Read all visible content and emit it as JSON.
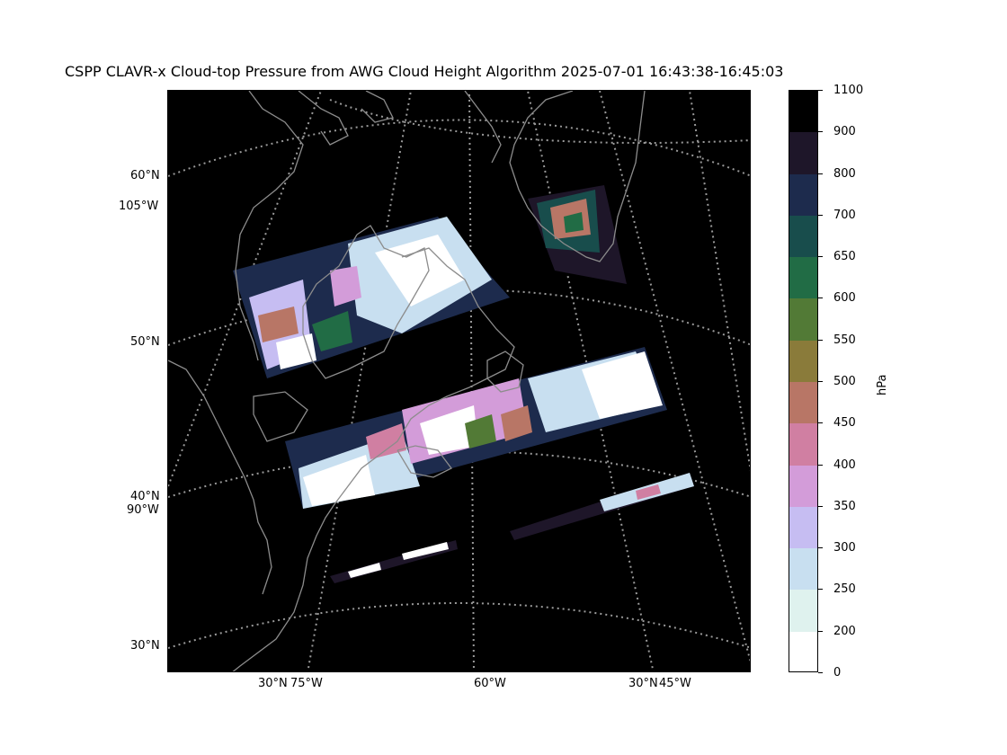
{
  "title": "CSPP CLAVR-x Cloud-top Pressure from AWG Cloud Height Algorithm 2025-07-01 16:43:38-16:45:03",
  "map": {
    "background": "#000000",
    "coastline_color": "#8c8c8c",
    "gridline_color": "#9a9a9a",
    "left_labels": [
      {
        "id": "lat-60",
        "text": "60°N"
      },
      {
        "id": "lon-105",
        "text": "105°W"
      },
      {
        "id": "lat-50",
        "text": "50°N"
      },
      {
        "id": "lat-40",
        "text": "40°N"
      },
      {
        "id": "lon-90",
        "text": "90°W"
      },
      {
        "id": "lat-30",
        "text": "30°N"
      }
    ],
    "bottom_labels": [
      {
        "id": "lat-30-left",
        "text": "30°N"
      },
      {
        "id": "lon-75",
        "text": "75°W"
      },
      {
        "id": "lon-60",
        "text": "60°W"
      },
      {
        "id": "lat-30-right",
        "text": "30°N"
      },
      {
        "id": "lon-45",
        "text": "45°W"
      }
    ]
  },
  "colorbar": {
    "label": "hPa",
    "ticks": [
      "1100",
      "900",
      "800",
      "700",
      "650",
      "600",
      "550",
      "500",
      "450",
      "400",
      "350",
      "300",
      "250",
      "200",
      "0"
    ],
    "bins": [
      {
        "range": "900-1100",
        "color": "#000000"
      },
      {
        "range": "800-900",
        "color": "#1e1629"
      },
      {
        "range": "700-800",
        "color": "#1d2b4d"
      },
      {
        "range": "650-700",
        "color": "#184d4c"
      },
      {
        "range": "600-650",
        "color": "#216c45"
      },
      {
        "range": "550-600",
        "color": "#527a36"
      },
      {
        "range": "500-550",
        "color": "#8a7b3a"
      },
      {
        "range": "450-500",
        "color": "#b87666"
      },
      {
        "range": "400-450",
        "color": "#d07fa2"
      },
      {
        "range": "350-400",
        "color": "#d39cd9"
      },
      {
        "range": "300-350",
        "color": "#c6bdf2"
      },
      {
        "range": "250-300",
        "color": "#c8dff0"
      },
      {
        "range": "200-250",
        "color": "#dff2ee"
      },
      {
        "range": "0-200",
        "color": "#ffffff"
      }
    ]
  }
}
